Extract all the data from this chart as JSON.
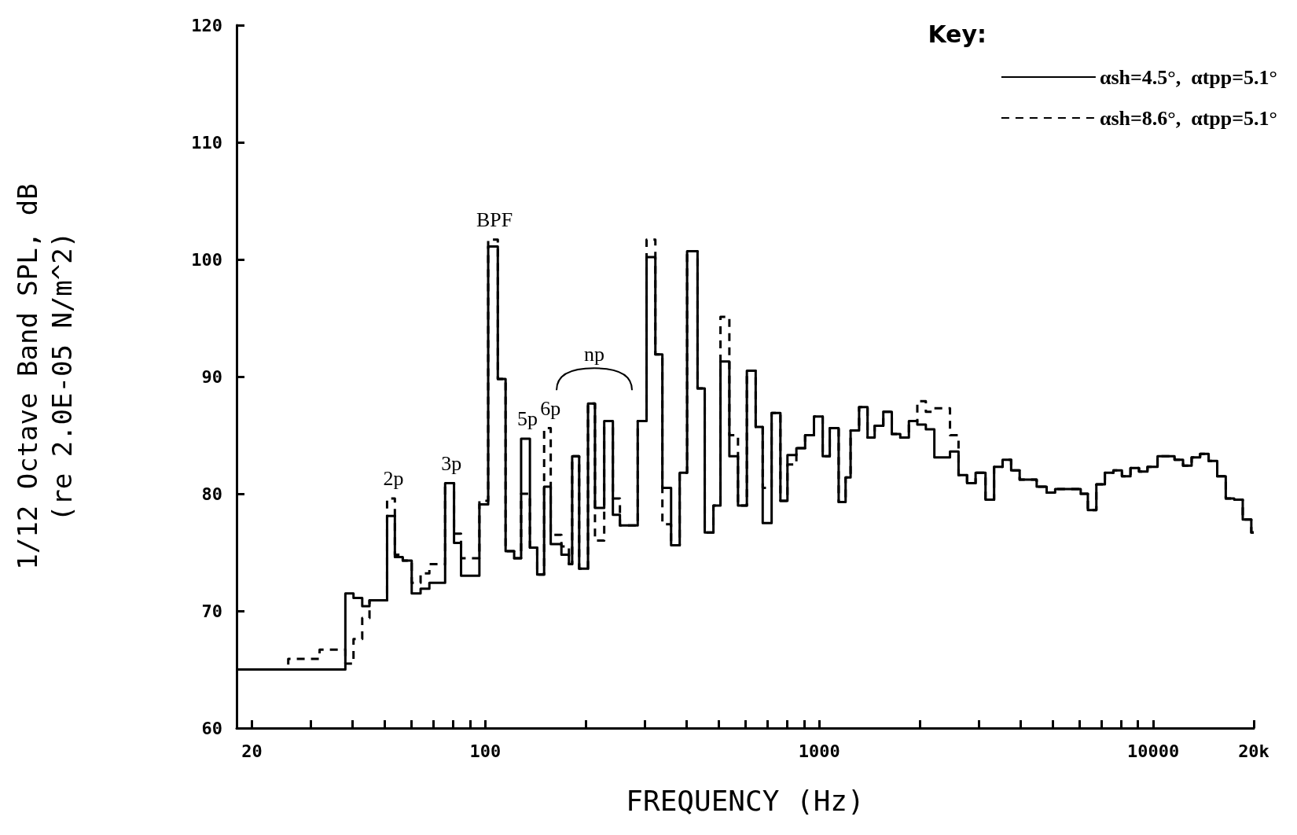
{
  "chart_data": {
    "type": "step",
    "xlabel": "FREQUENCY (Hz)",
    "ylabel": "1/12 Octave Band SPL, dB\n(re 2.0E-05 N/m^2)",
    "legend_title": "Key:",
    "legend": "top right",
    "log": "x",
    "grid": false,
    "marker": "none",
    "xlim": [
      18,
      20000
    ],
    "ylim": [
      60,
      120
    ],
    "xticks": [
      20,
      {
        "value": 30,
        "label": null
      },
      {
        "value": 40,
        "label": null
      },
      {
        "value": 50,
        "label": null
      },
      {
        "value": 60,
        "label": null
      },
      {
        "value": 70,
        "label": null
      },
      {
        "value": 80,
        "label": null
      },
      {
        "value": 90,
        "label": null
      },
      100,
      {
        "value": 200,
        "label": null
      },
      {
        "value": 300,
        "label": null
      },
      {
        "value": 400,
        "label": null
      },
      {
        "value": 500,
        "label": null
      },
      {
        "value": 600,
        "label": null
      },
      {
        "value": 700,
        "label": null
      },
      {
        "value": 800,
        "label": null
      },
      {
        "value": 900,
        "label": null
      },
      1000,
      {
        "value": 2000,
        "label": null
      },
      {
        "value": 3000,
        "label": null
      },
      {
        "value": 4000,
        "label": null
      },
      {
        "value": 5000,
        "label": null
      },
      {
        "value": 6000,
        "label": null
      },
      {
        "value": 7000,
        "label": null
      },
      {
        "value": 8000,
        "label": null
      },
      {
        "value": 9000,
        "label": null
      },
      10000,
      {
        "value": 20000,
        "label": "20k"
      }
    ],
    "yticks": [
      60,
      70,
      80,
      90,
      100,
      110,
      120
    ],
    "annotations": [
      {
        "text": "2p",
        "x": 50.8,
        "y": 79.6
      },
      {
        "text": "3p",
        "x": 75.8,
        "y": 80.9
      },
      {
        "text": "BPF",
        "x": 102,
        "y": 101.7
      },
      {
        "text": "5p",
        "x": 128,
        "y": 84.7
      },
      {
        "text": "6p",
        "x": 150,
        "y": 85.6
      },
      {
        "text": "np",
        "x": 203,
        "y": 87.7
      }
    ],
    "series": [
      {
        "name": "αsh=4.5°,  αtpp=5.1°",
        "color": "#000000",
        "line_style": "solid",
        "x": [
          18,
          38.1,
          40.3,
          42.8,
          45.0,
          50.8,
          53.6,
          56.6,
          60.2,
          64.0,
          68.0,
          75.8,
          80.6,
          84.6,
          96.0,
          102,
          109,
          115,
          122,
          128,
          136,
          143,
          150,
          157,
          169,
          178,
          182,
          191,
          203,
          213,
          227,
          241,
          253,
          286,
          304,
          323,
          339,
          360,
          382,
          402,
          432,
          454,
          482,
          506,
          538,
          571,
          607,
          645,
          677,
          720,
          765,
          803,
          854,
          907,
          964,
          1024,
          1075,
          1143,
          1199,
          1241,
          1316,
          1395,
          1465,
          1555,
          1649,
          1748,
          1855,
          1966,
          2085,
          2211,
          2463,
          2612,
          2770,
          2938,
          3146,
          3338,
          3539,
          3754,
          3981,
          4477,
          4796,
          5085,
          6066,
          6371,
          6756,
          7166,
          7599,
          8059,
          8549,
          9066,
          9613,
          10302,
          11584,
          12283,
          13031,
          13817,
          14652,
          15546,
          16488,
          17478,
          18536,
          19663,
          20000
        ],
        "values": [
          65.0,
          71.5,
          71.1,
          70.4,
          70.9,
          78.1,
          74.6,
          74.3,
          71.5,
          71.9,
          72.4,
          80.9,
          75.8,
          73.0,
          79.1,
          101.1,
          89.8,
          75.1,
          74.5,
          84.7,
          75.4,
          73.1,
          80.6,
          75.7,
          74.8,
          74.0,
          83.2,
          73.6,
          87.7,
          78.8,
          86.2,
          78.2,
          77.3,
          86.2,
          100.2,
          91.9,
          80.5,
          75.6,
          81.8,
          100.7,
          89.0,
          76.7,
          79.0,
          91.3,
          83.2,
          79.0,
          90.5,
          85.7,
          77.5,
          86.9,
          79.4,
          83.3,
          83.9,
          85.0,
          86.6,
          83.2,
          85.6,
          79.3,
          81.4,
          85.4,
          87.4,
          84.8,
          85.8,
          87.0,
          85.1,
          84.8,
          86.2,
          85.9,
          85.5,
          83.1,
          83.6,
          81.6,
          80.9,
          81.8,
          79.5,
          82.3,
          82.9,
          82.0,
          81.2,
          80.6,
          80.1,
          80.4,
          80.0,
          78.6,
          80.8,
          81.8,
          82.0,
          81.5,
          82.2,
          81.9,
          82.3,
          83.2,
          82.9,
          82.4,
          83.1,
          83.4,
          82.8,
          81.5,
          79.6,
          79.5,
          77.8,
          76.7,
          76.7
        ]
      },
      {
        "name": "αsh=8.6°,  αtpp=5.1°",
        "color": "#000000",
        "line_style": "dashed",
        "x": [
          18,
          25.7,
          31.9,
          38.1,
          40.3,
          42.8,
          45.0,
          50.8,
          53.6,
          56.6,
          60.2,
          64.0,
          68.0,
          75.8,
          80.6,
          84.6,
          96.0,
          102,
          109,
          115,
          122,
          128,
          136,
          143,
          150,
          157,
          169,
          178,
          182,
          191,
          203,
          213,
          227,
          241,
          253,
          286,
          304,
          323,
          339,
          360,
          382,
          402,
          432,
          454,
          482,
          506,
          538,
          571,
          607,
          645,
          677,
          720,
          765,
          803,
          854,
          907,
          964,
          1024,
          1075,
          1143,
          1199,
          1241,
          1316,
          1395,
          1465,
          1555,
          1649,
          1748,
          1855,
          1966,
          2085,
          2211,
          2463,
          2612,
          2770,
          2938,
          3146,
          3338,
          3539,
          3754,
          3981,
          4477,
          4796,
          5085,
          6066,
          6371,
          6756,
          7166,
          7599,
          8059,
          8549,
          9066,
          9613,
          10302,
          11584,
          12283,
          13031,
          13817,
          14652,
          15546,
          16488,
          17478,
          18536,
          19663,
          20000
        ],
        "values": [
          65.0,
          65.9,
          66.7,
          65.5,
          67.6,
          69.4,
          70.9,
          79.6,
          74.8,
          74.3,
          72.4,
          73.2,
          74.0,
          80.9,
          76.6,
          74.5,
          79.4,
          101.7,
          89.8,
          75.1,
          74.5,
          80.0,
          75.4,
          73.1,
          85.6,
          76.5,
          75.5,
          74.0,
          83.2,
          73.6,
          87.7,
          76.0,
          86.2,
          79.6,
          77.3,
          86.2,
          101.7,
          91.9,
          77.4,
          75.6,
          81.8,
          100.7,
          89.0,
          76.7,
          79.0,
          95.1,
          85.0,
          79.0,
          90.5,
          85.7,
          80.5,
          86.9,
          79.4,
          82.5,
          83.9,
          85.0,
          86.6,
          83.2,
          85.6,
          79.3,
          81.4,
          85.4,
          87.4,
          84.8,
          85.8,
          87.0,
          85.1,
          84.8,
          86.2,
          87.9,
          87.0,
          87.3,
          85.0,
          81.6,
          80.9,
          81.8,
          79.5,
          82.3,
          82.9,
          82.0,
          81.2,
          80.6,
          80.1,
          80.4,
          80.0,
          78.6,
          80.8,
          81.8,
          82.0,
          81.5,
          82.2,
          81.9,
          82.3,
          83.2,
          82.9,
          82.4,
          83.1,
          83.4,
          82.8,
          81.5,
          79.6,
          79.5,
          77.8,
          76.7,
          76.7
        ]
      }
    ]
  }
}
